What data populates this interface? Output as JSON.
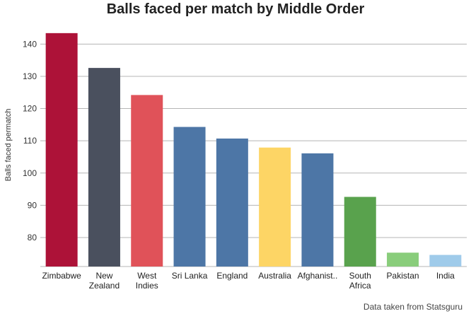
{
  "chart_data": {
    "type": "bar",
    "title": "Balls faced per match by Middle Order",
    "ylabel": "Balls faced permatch",
    "xlabel": "",
    "source_note": "Data taken from Statsguru",
    "ylim": [
      71,
      146
    ],
    "yticks": [
      80,
      90,
      100,
      110,
      120,
      130,
      140
    ],
    "grid": true,
    "categories": [
      [
        "Zimbabwe"
      ],
      [
        "New",
        "Zealand"
      ],
      [
        "West",
        "Indies"
      ],
      [
        "Sri Lanka"
      ],
      [
        "England"
      ],
      [
        "Australia"
      ],
      [
        "Afghanist.."
      ],
      [
        "South",
        "Africa"
      ],
      [
        "Pakistan"
      ],
      [
        "India"
      ]
    ],
    "values": [
      143.4,
      132.6,
      124.2,
      114.3,
      110.7,
      107.9,
      106.1,
      92.6,
      75.3,
      74.6
    ],
    "colors": [
      "#ad1238",
      "#4a505e",
      "#e05259",
      "#4d76a6",
      "#4d76a6",
      "#fdd565",
      "#4d76a6",
      "#59a24d",
      "#89cd7b",
      "#9fcbea"
    ]
  }
}
